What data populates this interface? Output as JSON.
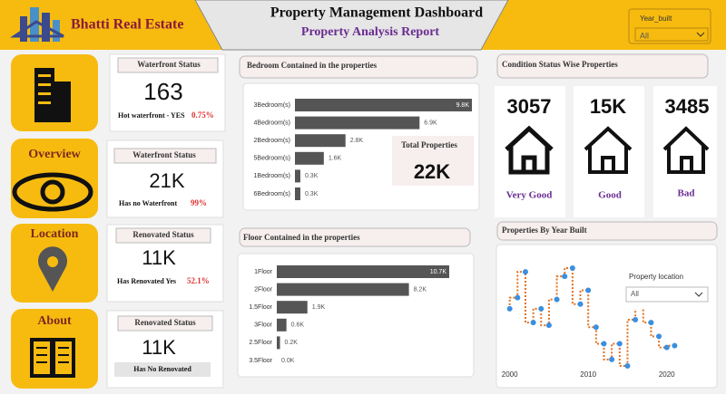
{
  "header": {
    "brand": "Bhatti Real Estate",
    "title": "Property Management Dashboard",
    "subtitle": "Property Analysis Report",
    "slicer": {
      "label": "Year_built",
      "value": "All"
    }
  },
  "nav": [
    "Overview",
    "Location",
    "About"
  ],
  "cards": [
    {
      "title": "Waterfront Status",
      "value": 163,
      "label": "Hot waterfront - YES",
      "percent": "0.75%"
    },
    {
      "title": "Waterfront Status",
      "value": "21K",
      "label": "Has no Waterfront",
      "percent": "99%"
    },
    {
      "title": "Renovated Status",
      "value": "11K",
      "label": "Has Renovated Yes",
      "percent": "52.1%"
    },
    {
      "title": "Renovated Status",
      "value": "11K",
      "label": "Has No Renovated"
    }
  ],
  "bedroom_chart": {
    "chart_data": {
      "type": "hbar",
      "title": "Bedroom Contained in the properties",
      "categories": [
        "3Bedroom(s)",
        "4Bedroom(s)",
        "2Bedroom(s)",
        "5Bedroom(s)",
        "1Bedroom(s)",
        "6Bedroom(s)"
      ],
      "values": [
        9800,
        6900,
        2800,
        1600,
        300,
        300
      ],
      "value_labels": [
        "9.8K",
        "6.9K",
        "2.8K",
        "1.6K",
        "0.3K",
        "0.3K"
      ],
      "color": "#555555"
    },
    "total": {
      "label": "Total  Properties",
      "value": "22K"
    }
  },
  "floor_chart": {
    "chart_data": {
      "type": "hbar",
      "title": "Floor Contained in the properties",
      "categories": [
        "1Floor",
        "2Floor",
        "1.5Floor",
        "3Floor",
        "2.5Floor",
        "3.5Floor"
      ],
      "values": [
        10700,
        8200,
        1900,
        600,
        200,
        0
      ],
      "value_labels": [
        "10.7K",
        "8.2K",
        "1.9K",
        "0.6K",
        "0.2K",
        "0.0K"
      ],
      "color": "#555555"
    }
  },
  "conditions": {
    "title": "Condition Status Wise Properties",
    "items": [
      {
        "value": 3057,
        "label": "Very Good"
      },
      {
        "value": "15K",
        "label": "Good"
      },
      {
        "value": 3485,
        "label": "Bad"
      }
    ]
  },
  "year_chart": {
    "chart_data": {
      "type": "line",
      "title": "Properties By Year Built",
      "x": [
        2000,
        2001,
        2002,
        2003,
        2004,
        2005,
        2006,
        2007,
        2008,
        2009,
        2010,
        2011,
        2012,
        2013,
        2014,
        2015,
        2016,
        2017,
        2018,
        2019,
        2020,
        2021
      ],
      "values": [
        80,
        92,
        120,
        65,
        80,
        62,
        90,
        115,
        124,
        85,
        100,
        60,
        42,
        25,
        42,
        18,
        68,
        85,
        65,
        50,
        38,
        40
      ],
      "xlim": [
        1999,
        2025
      ],
      "xticks": [
        2000,
        2010,
        2020
      ],
      "color": "#e07020",
      "marker_color": "#3a8fe0"
    },
    "slicer": {
      "label": "Property location",
      "value": "All"
    }
  }
}
